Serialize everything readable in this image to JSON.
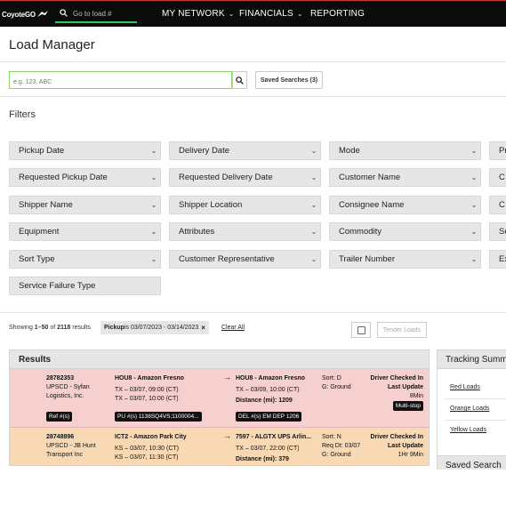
{
  "nav": {
    "logo": "CoyoteGO",
    "search_placeholder": "Go to load #",
    "items": [
      "MY NETWORK",
      "FINANCIALS",
      "REPORTING"
    ]
  },
  "page": {
    "title": "Load Manager",
    "search_placeholder": "e.g. 123, ABC",
    "saved_searches": "Saved Searches (3)",
    "filters_title": "Filters"
  },
  "filters": [
    [
      "Pickup Date",
      "Delivery Date",
      "Mode",
      "Pr"
    ],
    [
      "Requested Pickup Date",
      "Requested Delivery Date",
      "Customer Name",
      "C"
    ],
    [
      "Shipper Name",
      "Shipper Location",
      "Consignee Name",
      "C"
    ],
    [
      "Equipment",
      "Attributes",
      "Commodity",
      "Se"
    ],
    [
      "Sort Type",
      "Customer Representative",
      "Trailer Number",
      "Ex"
    ],
    [
      "Service Failure Type"
    ]
  ],
  "results_meta": {
    "showing_prefix": "Showing ",
    "range": "1–50",
    "of": " of ",
    "total": "2118",
    "suffix": " results",
    "chip_key": "Pickup",
    "chip_rest": " is 03/07/2023 - 03/14/2023",
    "chip_close": "×",
    "clear_all": "Clear All",
    "tender_loads": "Tender Loads"
  },
  "results": {
    "title": "Results",
    "rows": [
      {
        "load_id": "28782353",
        "carrier_line1": "UPSCD - Syfan",
        "carrier_line2": "Logistics, Inc.",
        "ref": "Ref #(s)",
        "origin_name": "HOU8 - Amazon Fresno",
        "origin_line1": "TX – 03/07, 09:00 (CT)",
        "origin_line2": "TX – 03/07, 10:00 (CT)",
        "pu": "PU #(s) 1138SQ4VS;1100004...",
        "dest_name": "HOU8 - Amazon Fresno",
        "dest_line1": "TX – 03/09, 10:00 (CT)",
        "distance_label": "Distance (mi): ",
        "distance": "1209",
        "del": "DEL #(s) EM DEP 1206",
        "sort": "Sort: D",
        "group": "G: Ground",
        "status1": "Driver Checked In",
        "status2": "Last Update",
        "status3": "8Min",
        "badge": "Multi-stop"
      },
      {
        "load_id": "28748896",
        "carrier_line1": "UPSCD - JB Hunt",
        "carrier_line2": "Transport Inc",
        "origin_name": "ICT2 - Amazon Park City",
        "origin_line1": "KS – 03/07, 10:30 (CT)",
        "origin_line2": "KS – 03/07, 11:30 (CT)",
        "dest_name": "7597 - ALGTX UPS Arlin...",
        "dest_line1": "TX – 03/07, 22:00 (CT)",
        "distance_label": "Distance (mi): ",
        "distance": "379",
        "sort": "Sort: N",
        "req_dt": "Req Dt: 03/07",
        "group": "G: Ground",
        "status1": "Driver Checked In",
        "status2": "Last Update",
        "status3": "1Hr 9Min"
      }
    ]
  },
  "tracking": {
    "title": "Tracking Summ",
    "links": [
      "Red Loads",
      "Orange Loads",
      "Yellow Loads"
    ],
    "saved_title": "Saved Search"
  },
  "colors": {
    "nav_bg": "#0b0b0b",
    "search_accent": "#34c759",
    "row_red": "#f6cfcf",
    "row_orange": "#f8d9b3",
    "filter_bg": "#e6e6e6"
  }
}
